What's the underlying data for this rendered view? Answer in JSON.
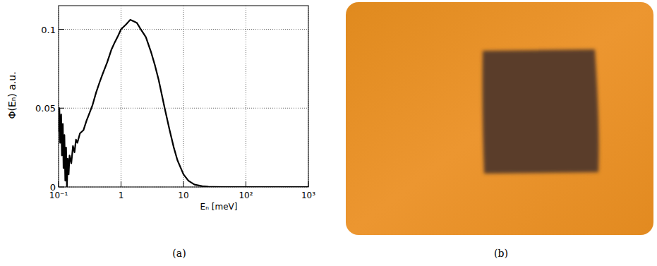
{
  "chart_data": {
    "type": "line",
    "caption": "(a)",
    "x_label": "Eₙ [meV]",
    "y_label": "Φ(Eₙ) a.u.",
    "log": "x",
    "grid": true,
    "xlim": [
      0.1,
      1000
    ],
    "ylim": [
      0,
      0.115
    ],
    "xticks": [
      {
        "value": 0.1,
        "label": "10⁻¹"
      },
      1,
      10,
      {
        "value": 100,
        "label": "10²"
      },
      {
        "value": 1000,
        "label": "10³"
      }
    ],
    "yticks": [
      0,
      0.05,
      0.1
    ],
    "x": [
      0.1,
      0.103,
      0.106,
      0.11,
      0.113,
      0.117,
      0.12,
      0.124,
      0.128,
      0.132,
      0.136,
      0.14,
      0.145,
      0.15,
      0.16,
      0.17,
      0.18,
      0.19,
      0.2,
      0.22,
      0.25,
      0.28,
      0.3,
      0.35,
      0.4,
      0.45,
      0.5,
      0.6,
      0.7,
      0.8,
      0.9,
      1.0,
      1.2,
      1.4,
      1.6,
      1.8,
      2.0,
      2.5,
      3.0,
      3.5,
      4.0,
      5.0,
      6.0,
      7.0,
      8.0,
      10,
      12,
      15,
      20,
      25,
      30,
      50,
      100,
      1000
    ],
    "series": [
      {
        "name": "Φ",
        "color": "#000000",
        "values": [
          0.035,
          0.05,
          0.028,
          0.046,
          0.02,
          0.04,
          0.012,
          0.033,
          0.004,
          0.025,
          0.0,
          0.018,
          0.008,
          0.02,
          0.015,
          0.026,
          0.022,
          0.03,
          0.028,
          0.034,
          0.036,
          0.042,
          0.045,
          0.052,
          0.06,
          0.066,
          0.071,
          0.079,
          0.087,
          0.092,
          0.096,
          0.1,
          0.103,
          0.106,
          0.105,
          0.104,
          0.101,
          0.095,
          0.086,
          0.077,
          0.068,
          0.05,
          0.036,
          0.025,
          0.017,
          0.008,
          0.004,
          0.0015,
          0.0005,
          0.0002,
          0.0001,
          0.0,
          0.0,
          0.0
        ]
      }
    ]
  },
  "photo": {
    "caption": "(b)"
  }
}
